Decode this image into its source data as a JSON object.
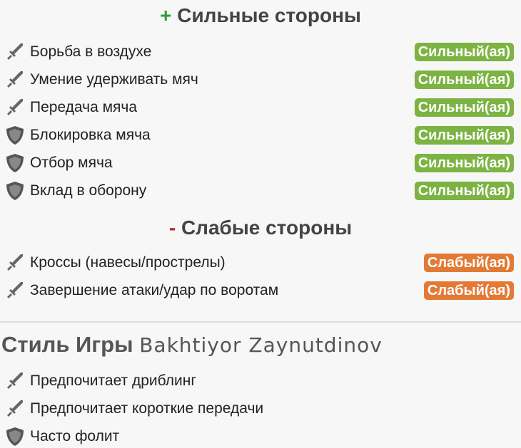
{
  "strengths": {
    "sign": "+",
    "title": "Сильные стороны",
    "items": [
      {
        "icon": "sword-icon",
        "label": "Борьба в воздухе",
        "badge": "Сильный(ая)"
      },
      {
        "icon": "sword-icon",
        "label": "Умение удерживать мяч",
        "badge": "Сильный(ая)"
      },
      {
        "icon": "sword-icon",
        "label": "Передача мяча",
        "badge": "Сильный(ая)"
      },
      {
        "icon": "shield-icon",
        "label": "Блокировка мяча",
        "badge": "Сильный(ая)"
      },
      {
        "icon": "shield-icon",
        "label": "Отбор мяча",
        "badge": "Сильный(ая)"
      },
      {
        "icon": "shield-icon",
        "label": "Вклад в оборону",
        "badge": "Сильный(ая)"
      }
    ]
  },
  "weaknesses": {
    "sign": "-",
    "title": "Слабые стороны",
    "items": [
      {
        "icon": "sword-icon",
        "label": "Кроссы (навесы/прострелы)",
        "badge": "Слабый(ая)"
      },
      {
        "icon": "sword-icon",
        "label": "Завершение атаки/удар по воротам",
        "badge": "Слабый(ая)"
      }
    ]
  },
  "style": {
    "title": "Стиль Игры",
    "player": "Bakhtiyor Zaynutdinov",
    "items": [
      {
        "icon": "sword-icon",
        "label": "Предпочитает дриблинг"
      },
      {
        "icon": "sword-icon",
        "label": "Предпочитает короткие передачи"
      },
      {
        "icon": "shield-icon",
        "label": "Часто фолит"
      }
    ]
  },
  "colors": {
    "strong": "#7cb342",
    "weak": "#e27a36",
    "plus": "#2e9e3e",
    "minus": "#c0282d"
  }
}
